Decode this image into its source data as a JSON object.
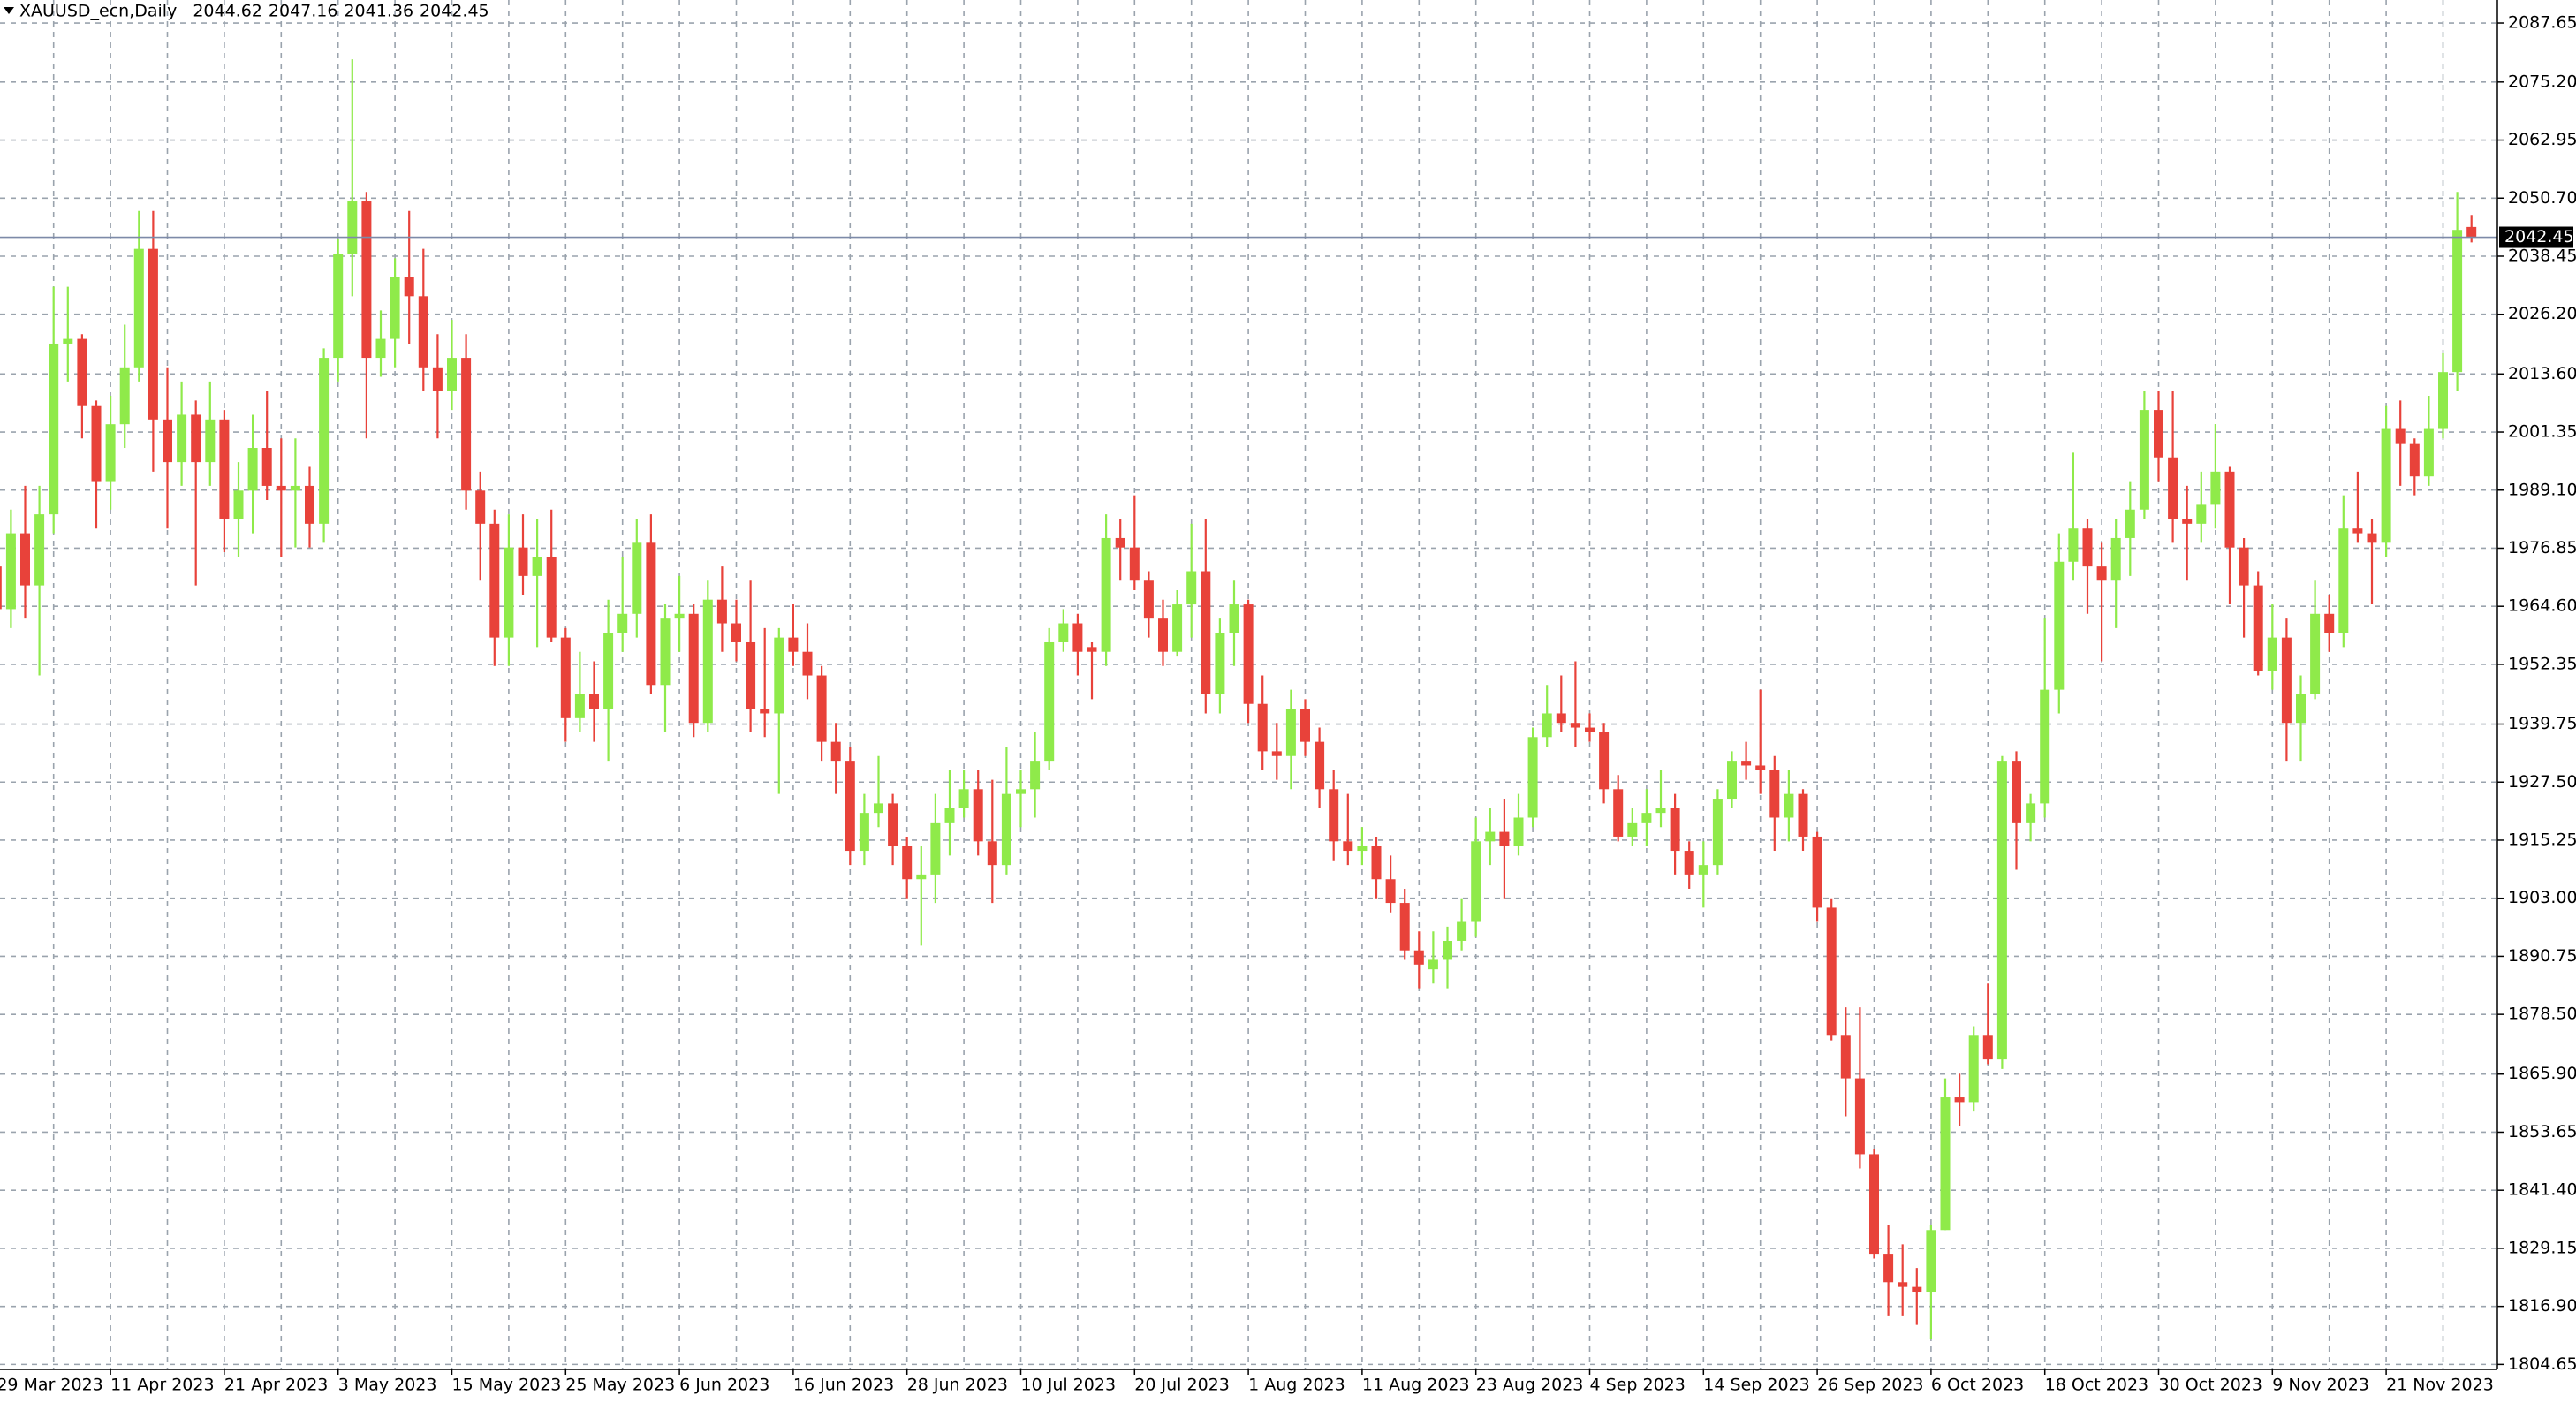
{
  "chart_data": {
    "type": "candlestick",
    "title": "XAUUSD_ecn,Daily",
    "categories": [
      "29 Mar 2023",
      null,
      null,
      null,
      null,
      null,
      null,
      null,
      "11 Apr 2023",
      null,
      null,
      null,
      null,
      null,
      null,
      null,
      "21 Apr 2023",
      null,
      null,
      null,
      null,
      null,
      null,
      null,
      "3 May 2023",
      null,
      null,
      null,
      null,
      null,
      null,
      null,
      "15 May 2023",
      null,
      null,
      null,
      null,
      null,
      null,
      null,
      "25 May 2023",
      null,
      null,
      null,
      null,
      null,
      null,
      null,
      "6 Jun 2023",
      null,
      null,
      null,
      null,
      null,
      null,
      null,
      "16 Jun 2023",
      null,
      null,
      null,
      null,
      null,
      null,
      null,
      "28 Jun 2023",
      null,
      null,
      null,
      null,
      null,
      null,
      null,
      "10 Jul 2023",
      null,
      null,
      null,
      null,
      null,
      null,
      null,
      "20 Jul 2023",
      null,
      null,
      null,
      null,
      null,
      null,
      null,
      "1 Aug 2023",
      null,
      null,
      null,
      null,
      null,
      null,
      null,
      "11 Aug 2023",
      null,
      null,
      null,
      null,
      null,
      null,
      null,
      "23 Aug 2023",
      null,
      null,
      null,
      null,
      null,
      null,
      null,
      "4 Sep 2023",
      null,
      null,
      null,
      null,
      null,
      null,
      null,
      "14 Sep 2023",
      null,
      null,
      null,
      null,
      null,
      null,
      null,
      "26 Sep 2023",
      null,
      null,
      null,
      null,
      null,
      null,
      null,
      "6 Oct 2023",
      null,
      null,
      null,
      null,
      null,
      null,
      null,
      "18 Oct 2023",
      null,
      null,
      null,
      null,
      null,
      null,
      null,
      "30 Oct 2023",
      null,
      null,
      null,
      null,
      null,
      null,
      null,
      "9 Nov 2023",
      null,
      null,
      null,
      null,
      null,
      null,
      null,
      "21 Nov 2023",
      null,
      null,
      null,
      null,
      null,
      null
    ],
    "open": [
      1973,
      1964,
      1980,
      1969,
      1984,
      2020,
      2021,
      2007,
      1991,
      2003,
      2015,
      2040,
      2004,
      1995,
      2005,
      1995,
      2004,
      1983,
      1989,
      1998,
      1990,
      1989,
      1990,
      1982,
      2017,
      2039,
      2050,
      2017,
      2021,
      2034,
      2030,
      2015,
      2010,
      2017,
      1989,
      1982,
      1958,
      1977,
      1971,
      1975,
      1958,
      1941,
      1946,
      1943,
      1959,
      1963,
      1978,
      1948,
      1962,
      1963,
      1940,
      1966,
      1961,
      1957,
      1943,
      1942,
      1958,
      1955,
      1950,
      1936,
      1932,
      1913,
      1921,
      1923,
      1914,
      1907,
      1908,
      1919,
      1922,
      1926,
      1915,
      1910,
      1925,
      1926,
      1932,
      1957,
      1961,
      1956,
      1955,
      1979,
      1977,
      1970,
      1962,
      1955,
      1965,
      1972,
      1946,
      1959,
      1965,
      1944,
      1934,
      1933,
      1943,
      1936,
      1926,
      1915,
      1913,
      1914,
      1907,
      1902,
      1892,
      1888,
      1890,
      1894,
      1898,
      1915,
      1917,
      1914,
      1920,
      1937,
      1942,
      1940,
      1939,
      1938,
      1926,
      1916,
      1919,
      1921,
      1922,
      1913,
      1908,
      1910,
      1924,
      1932,
      1931,
      1930,
      1920,
      1925,
      1916,
      1901,
      1874,
      1865,
      1849,
      1828,
      1822,
      1821,
      1820,
      1833,
      1861,
      1860,
      1874,
      1869,
      1932,
      1919,
      1923,
      1947,
      1974,
      1981,
      1973,
      1970,
      1979,
      1985,
      2006,
      1996,
      1983,
      1982,
      1986,
      1993,
      1977,
      1969,
      1951,
      1958,
      1940,
      1946,
      1963,
      1959,
      1981,
      1980,
      1978,
      2002,
      1999,
      1992,
      2002,
      2014,
      2044.62
    ],
    "high": [
      1975,
      1985,
      1990,
      1990,
      2032,
      2032,
      2022,
      2008,
      2009,
      2024,
      2048,
      2048,
      2015,
      2012,
      2008,
      2012,
      2006,
      1995,
      2005,
      2010,
      2000,
      2000,
      1994,
      2019,
      2042,
      2080,
      2052,
      2027,
      2038,
      2048,
      2040,
      2022,
      2025,
      2022,
      1993,
      1985,
      1984,
      1984,
      1983,
      1985,
      1960,
      1955,
      1953,
      1966,
      1975,
      1983,
      1984,
      1965,
      1971,
      1965,
      1970,
      1973,
      1966,
      1970,
      1960,
      1960,
      1965,
      1961,
      1952,
      1940,
      1935,
      1925,
      1933,
      1925,
      1916,
      1914,
      1925,
      1930,
      1930,
      1930,
      1928,
      1935,
      1930,
      1938,
      1960,
      1964,
      1963,
      1957,
      1984,
      1983,
      1988,
      1972,
      1966,
      1968,
      1982,
      1983,
      1962,
      1970,
      1966,
      1950,
      1940,
      1947,
      1945,
      1939,
      1930,
      1925,
      1918,
      1916,
      1912,
      1905,
      1896,
      1896,
      1897,
      1903,
      1920,
      1922,
      1924,
      1925,
      1939,
      1948,
      1950,
      1953,
      1942,
      1940,
      1929,
      1922,
      1926,
      1930,
      1925,
      1915,
      1915,
      1926,
      1934,
      1936,
      1947,
      1933,
      1930,
      1926,
      1917,
      1903,
      1880,
      1880,
      1850,
      1834,
      1830,
      1825,
      1834,
      1865,
      1866,
      1876,
      1885,
      1933,
      1934,
      1925,
      1962,
      1980,
      1997,
      1983,
      1978,
      1983,
      1991,
      2010,
      2010,
      2010,
      1990,
      1993,
      2003,
      1994,
      1979,
      1972,
      1965,
      1962,
      1950,
      1970,
      1967,
      1988,
      1993,
      1983,
      2007,
      2008,
      2000,
      2009,
      2018,
      2052,
      2047.16
    ],
    "low": [
      1950,
      1960,
      1962,
      1950,
      1980,
      2012,
      2000,
      1981,
      1985,
      1998,
      2012,
      1993,
      1981,
      1990,
      1969,
      1990,
      1976,
      1975,
      1980,
      1987,
      1975,
      1977,
      1977,
      1978,
      2012,
      2030,
      2000,
      2013,
      2015,
      2020,
      2010,
      2000,
      2006,
      1985,
      1970,
      1952,
      1952,
      1967,
      1956,
      1957,
      1936,
      1938,
      1936,
      1932,
      1955,
      1958,
      1946,
      1938,
      1955,
      1937,
      1938,
      1955,
      1953,
      1938,
      1937,
      1925,
      1952,
      1945,
      1932,
      1925,
      1910,
      1910,
      1918,
      1910,
      1903,
      1893,
      1902,
      1912,
      1920,
      1912,
      1902,
      1908,
      1918,
      1920,
      1930,
      1955,
      1950,
      1945,
      1952,
      1970,
      1968,
      1958,
      1952,
      1954,
      1958,
      1942,
      1942,
      1952,
      1940,
      1930,
      1928,
      1926,
      1933,
      1922,
      1911,
      1910,
      1910,
      1903,
      1900,
      1890,
      1884,
      1885,
      1884,
      1892,
      1895,
      1910,
      1903,
      1912,
      1918,
      1935,
      1938,
      1935,
      1936,
      1923,
      1915,
      1914,
      1914,
      1918,
      1908,
      1905,
      1901,
      1908,
      1922,
      1928,
      1925,
      1913,
      1915,
      1913,
      1898,
      1873,
      1857,
      1846,
      1827,
      1815,
      1815,
      1813,
      1810,
      1833,
      1855,
      1858,
      1868,
      1867,
      1909,
      1915,
      1920,
      1942,
      1970,
      1963,
      1953,
      1960,
      1971,
      1983,
      1991,
      1978,
      1970,
      1978,
      1981,
      1965,
      1958,
      1950,
      1947,
      1932,
      1932,
      1945,
      1955,
      1956,
      1978,
      1965,
      1975,
      1990,
      1988,
      1990,
      2000,
      2010,
      2041.36
    ],
    "close": [
      1964,
      1980,
      1969,
      1984,
      2020,
      2021,
      2007,
      1991,
      2003,
      2015,
      2040,
      2004,
      1995,
      2005,
      1995,
      2004,
      1983,
      1989,
      1998,
      1990,
      1989,
      1990,
      1982,
      2017,
      2039,
      2050,
      2017,
      2021,
      2034,
      2030,
      2015,
      2010,
      2017,
      1989,
      1982,
      1958,
      1977,
      1971,
      1975,
      1958,
      1941,
      1946,
      1943,
      1959,
      1963,
      1978,
      1948,
      1962,
      1963,
      1940,
      1966,
      1961,
      1957,
      1943,
      1942,
      1958,
      1955,
      1950,
      1936,
      1932,
      1913,
      1921,
      1923,
      1914,
      1907,
      1908,
      1919,
      1922,
      1926,
      1915,
      1910,
      1925,
      1926,
      1932,
      1957,
      1961,
      1955,
      1955,
      1979,
      1977,
      1970,
      1962,
      1955,
      1965,
      1972,
      1946,
      1959,
      1965,
      1944,
      1934,
      1933,
      1943,
      1936,
      1926,
      1915,
      1913,
      1914,
      1907,
      1902,
      1892,
      1889,
      1890,
      1894,
      1898,
      1915,
      1917,
      1914,
      1920,
      1937,
      1942,
      1940,
      1939,
      1938,
      1926,
      1916,
      1919,
      1921,
      1922,
      1913,
      1908,
      1910,
      1924,
      1932,
      1931,
      1930,
      1920,
      1925,
      1916,
      1901,
      1874,
      1865,
      1849,
      1828,
      1822,
      1821,
      1820,
      1833,
      1861,
      1860,
      1874,
      1869,
      1932,
      1919,
      1923,
      1947,
      1974,
      1981,
      1973,
      1970,
      1979,
      1985,
      2006,
      1996,
      1983,
      1982,
      1986,
      1993,
      1977,
      1969,
      1951,
      1958,
      1940,
      1946,
      1963,
      1959,
      1981,
      1980,
      1978,
      2002,
      1999,
      1992,
      2002,
      2014,
      2044,
      2042.45
    ],
    "up_color": "#8fea4a",
    "down_color": "#e8423a",
    "ylim": [
      1803.6,
      2092.5
    ],
    "yticks": [
      2087.65,
      {
        "value": 2075.2,
        "label": "2075.20"
      },
      2062.95,
      {
        "value": 2050.7,
        "label": "2050.70"
      },
      2038.45,
      {
        "value": 2026.2,
        "label": "2026.20"
      },
      {
        "value": 2013.6,
        "label": "2013.60"
      },
      2001.35,
      {
        "value": 1989.1,
        "label": "1989.10"
      },
      1976.85,
      {
        "value": 1964.6,
        "label": "1964.60"
      },
      1952.35,
      1939.75,
      {
        "value": 1927.5,
        "label": "1927.50"
      },
      1915.25,
      {
        "value": 1903,
        "label": "1903.00"
      },
      1890.75,
      {
        "value": 1878.5,
        "label": "1878.50"
      },
      {
        "value": 1865.9,
        "label": "1865.90"
      },
      1853.65,
      {
        "value": 1841.4,
        "label": "1841.40"
      },
      1829.15,
      {
        "value": 1816.9,
        "label": "1816.90"
      },
      1804.65
    ],
    "grid": true
  }
}
